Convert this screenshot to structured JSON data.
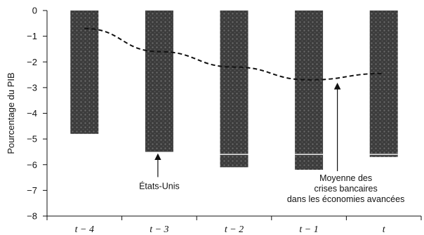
{
  "chart_data": {
    "type": "bar",
    "title": "",
    "xlabel": "",
    "ylabel": "Pourcentage du PIB",
    "ylim": [
      -8,
      0
    ],
    "yticks": [
      0,
      -1,
      -2,
      -3,
      -4,
      -5,
      -6,
      -7,
      -8
    ],
    "ytick_labels": [
      "0",
      "−1",
      "−2",
      "−3",
      "−4",
      "−5",
      "−6",
      "−7",
      "−8"
    ],
    "categories": [
      "t − 4",
      "t − 3",
      "t − 2",
      "t − 1",
      "t"
    ],
    "series": [
      {
        "name": "États-Unis",
        "values": [
          -4.8,
          -5.5,
          -6.1,
          -6.2,
          -5.7
        ],
        "style": "bar"
      },
      {
        "name": "Moyenne des crises bancaires dans les économies avancées",
        "values": [
          -0.7,
          -1.6,
          -2.2,
          -2.7,
          -2.45
        ],
        "style": "dashed-line"
      }
    ],
    "marker_lines": [
      null,
      null,
      -5.6,
      -5.6,
      -5.6
    ],
    "grid": false,
    "annotations": [
      {
        "lines": [
          "États-Unis"
        ],
        "series": "États-Unis",
        "category_index": 1
      },
      {
        "lines": [
          "Moyenne des",
          "crises bancaires",
          "dans les économies avancées"
        ],
        "series": "Moyenne des crises bancaires dans les économies avancées",
        "category_index": 3
      }
    ],
    "colors": {
      "bar": "#3c3c3c",
      "bar_texture": "#6e6e6e",
      "line": "#111111",
      "axis": "#111111",
      "marker": "#ffffff"
    }
  }
}
